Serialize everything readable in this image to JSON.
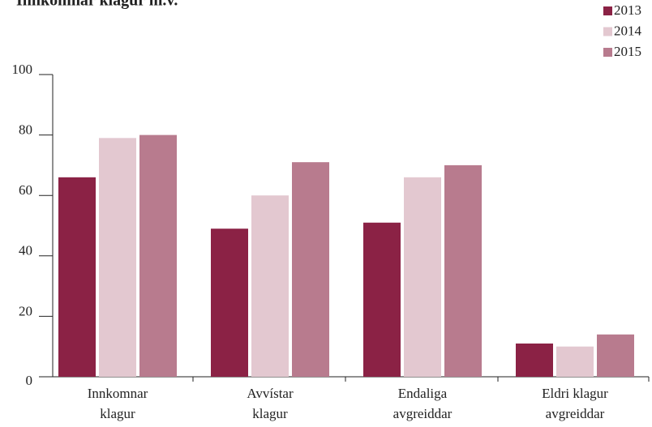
{
  "chart_data": {
    "type": "bar",
    "title": "Innkomnar klagur m.v.",
    "categories": [
      [
        "Innkomnar",
        "klagur"
      ],
      [
        "Avvístar",
        "klagur"
      ],
      [
        "Endaliga",
        "avgreiddar"
      ],
      [
        "Eldri klagur",
        "avgreiddar"
      ]
    ],
    "series": [
      {
        "name": "2013",
        "color": "#8b2245",
        "values": [
          66,
          49,
          51,
          11
        ]
      },
      {
        "name": "2014",
        "color": "#e3c8d0",
        "values": [
          79,
          60,
          66,
          10
        ]
      },
      {
        "name": "2015",
        "color": "#b87b8e",
        "values": [
          80,
          71,
          70,
          14
        ]
      }
    ],
    "ylim": [
      0,
      100
    ],
    "yticks": [
      0,
      20,
      40,
      60,
      80,
      100
    ],
    "legend": "top-right"
  }
}
